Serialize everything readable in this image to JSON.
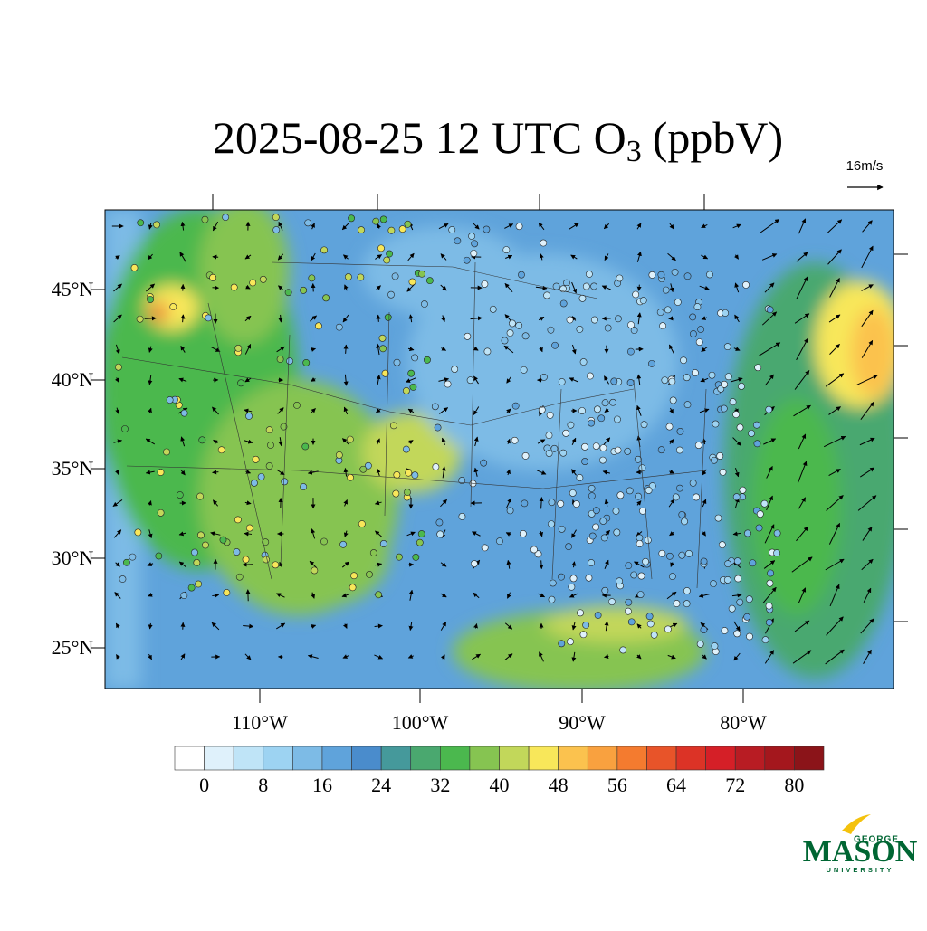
{
  "title": {
    "main": "2025-08-25 12 UTC O",
    "subscript": "3",
    "unit": "(ppbV)"
  },
  "scale_label": "16m/s",
  "lat_labels": [
    "45°N",
    "40°N",
    "35°N",
    "30°N",
    "25°N"
  ],
  "lon_labels": [
    "110°W",
    "100°W",
    "90°W",
    "80°W"
  ],
  "colorbar": {
    "ticks": [
      0,
      8,
      16,
      24,
      32,
      40,
      48,
      56,
      64,
      72,
      80
    ],
    "colors": [
      "#ffffff",
      "#dff1fb",
      "#bfe4f7",
      "#9dd3f2",
      "#7dbbe6",
      "#5fa3db",
      "#4a8ccc",
      "#45999b",
      "#4aa86f",
      "#4bb84e",
      "#86c451",
      "#c2d75a",
      "#f8e75a",
      "#fbc24e",
      "#f9a13f",
      "#f47b2f",
      "#e85429",
      "#dc3326",
      "#d51f27",
      "#b81c23",
      "#a4171d",
      "#8b1419"
    ]
  },
  "logo": {
    "top": "GEORGE",
    "main": "MASON",
    "bottom": "UNIVERSITY"
  }
}
